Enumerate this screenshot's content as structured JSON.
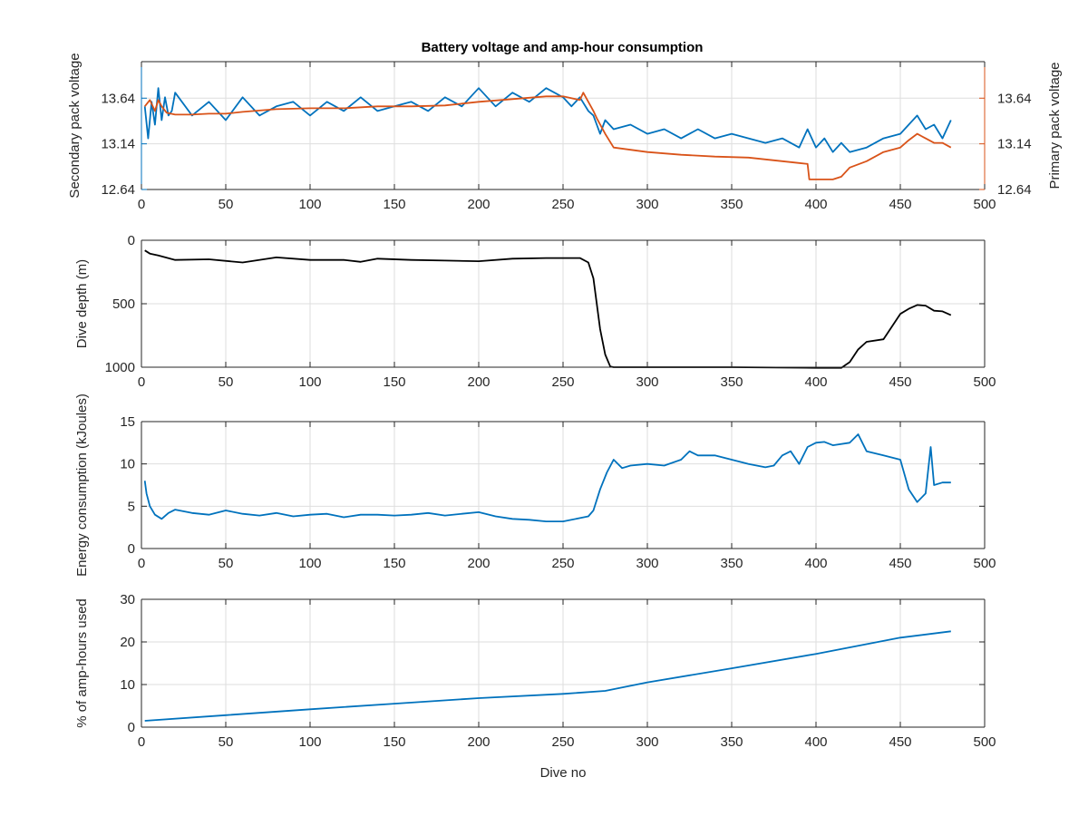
{
  "colors": {
    "secondary_voltage": "#0072BD",
    "primary_voltage": "#D95319",
    "depth": "#000000",
    "energy": "#0072BD",
    "amp_hours": "#0072BD",
    "grid": "#DEDEDE",
    "axes": "#262626"
  },
  "chart_data": [
    {
      "type": "line",
      "title": "Battery voltage and amp-hour consumption",
      "xlabel": "",
      "ylabel_left": "Secondary pack voltage",
      "ylabel_right": "Primary pack voltage",
      "xlim": [
        0,
        500
      ],
      "ylim_left": [
        12.64,
        14.04
      ],
      "ylim_right": [
        12.64,
        14.04
      ],
      "xticks": [
        0,
        50,
        100,
        150,
        200,
        250,
        300,
        350,
        400,
        450,
        500
      ],
      "yticks_left": [
        12.64,
        13.14,
        13.64
      ],
      "yticks_right": [
        12.64,
        13.14,
        13.64
      ],
      "grid": true,
      "series": [
        {
          "axis": "left",
          "x": [
            2,
            4,
            6,
            8,
            10,
            12,
            14,
            16,
            18,
            20,
            30,
            40,
            50,
            60,
            70,
            80,
            90,
            100,
            110,
            120,
            130,
            140,
            150,
            160,
            170,
            180,
            190,
            200,
            210,
            220,
            230,
            240,
            250,
            255,
            260,
            265,
            268,
            270,
            272,
            275,
            280,
            290,
            300,
            310,
            320,
            330,
            340,
            350,
            360,
            370,
            380,
            390,
            395,
            400,
            405,
            410,
            415,
            420,
            430,
            440,
            450,
            455,
            460,
            465,
            470,
            475,
            480
          ],
          "y": [
            13.55,
            13.2,
            13.6,
            13.35,
            13.75,
            13.4,
            13.65,
            13.45,
            13.5,
            13.7,
            13.45,
            13.6,
            13.4,
            13.65,
            13.45,
            13.55,
            13.6,
            13.45,
            13.6,
            13.5,
            13.65,
            13.5,
            13.55,
            13.6,
            13.5,
            13.65,
            13.55,
            13.75,
            13.55,
            13.7,
            13.6,
            13.75,
            13.65,
            13.55,
            13.65,
            13.5,
            13.45,
            13.35,
            13.25,
            13.4,
            13.3,
            13.35,
            13.25,
            13.3,
            13.2,
            13.3,
            13.2,
            13.25,
            13.2,
            13.15,
            13.2,
            13.1,
            13.3,
            13.1,
            13.2,
            13.05,
            13.15,
            13.05,
            13.1,
            13.2,
            13.25,
            13.35,
            13.45,
            13.3,
            13.35,
            13.2,
            13.4
          ]
        },
        {
          "axis": "right",
          "x": [
            2,
            5,
            8,
            10,
            12,
            15,
            20,
            30,
            40,
            50,
            60,
            80,
            100,
            120,
            140,
            160,
            180,
            200,
            220,
            240,
            250,
            260,
            262,
            265,
            268,
            270,
            275,
            280,
            300,
            320,
            340,
            360,
            380,
            390,
            395,
            396,
            400,
            410,
            415,
            420,
            430,
            440,
            450,
            455,
            460,
            465,
            470,
            475,
            480
          ],
          "y": [
            13.55,
            13.62,
            13.5,
            13.62,
            13.55,
            13.48,
            13.46,
            13.46,
            13.47,
            13.47,
            13.49,
            13.52,
            13.53,
            13.53,
            13.55,
            13.55,
            13.56,
            13.6,
            13.63,
            13.66,
            13.66,
            13.62,
            13.7,
            13.6,
            13.5,
            13.42,
            13.25,
            13.1,
            13.05,
            13.02,
            13.0,
            12.99,
            12.95,
            12.93,
            12.92,
            12.75,
            12.75,
            12.75,
            12.78,
            12.88,
            12.95,
            13.05,
            13.1,
            13.18,
            13.25,
            13.2,
            13.15,
            13.15,
            13.1
          ]
        }
      ]
    },
    {
      "type": "line",
      "xlabel": "",
      "ylabel": "Dive depth (m)",
      "xlim": [
        0,
        500
      ],
      "ylim": [
        0,
        1000
      ],
      "y_reversed": true,
      "xticks": [
        0,
        50,
        100,
        150,
        200,
        250,
        300,
        350,
        400,
        450,
        500
      ],
      "yticks": [
        0,
        500,
        1000
      ],
      "grid": true,
      "series": [
        {
          "x": [
            2,
            5,
            10,
            20,
            40,
            60,
            80,
            100,
            120,
            130,
            140,
            160,
            180,
            200,
            220,
            240,
            260,
            265,
            268,
            270,
            272,
            275,
            278,
            280,
            300,
            350,
            400,
            415,
            420,
            425,
            430,
            440,
            450,
            455,
            460,
            465,
            470,
            475,
            480
          ],
          "y": [
            80,
            105,
            120,
            155,
            150,
            175,
            135,
            155,
            155,
            170,
            145,
            155,
            160,
            165,
            145,
            140,
            140,
            175,
            300,
            500,
            700,
            900,
            995,
            1000,
            1000,
            1000,
            1005,
            1005,
            960,
            860,
            800,
            780,
            580,
            540,
            510,
            515,
            555,
            560,
            590
          ]
        }
      ]
    },
    {
      "type": "line",
      "xlabel": "",
      "ylabel": "Energy consumption (kJoules)",
      "xlim": [
        0,
        500
      ],
      "ylim": [
        0,
        15
      ],
      "xticks": [
        0,
        50,
        100,
        150,
        200,
        250,
        300,
        350,
        400,
        450,
        500
      ],
      "yticks": [
        0,
        5,
        10,
        15
      ],
      "grid": true,
      "series": [
        {
          "x": [
            2,
            3,
            5,
            8,
            12,
            16,
            20,
            30,
            40,
            50,
            60,
            70,
            80,
            90,
            100,
            110,
            120,
            130,
            140,
            150,
            160,
            170,
            180,
            190,
            200,
            210,
            220,
            230,
            240,
            250,
            260,
            265,
            268,
            272,
            276,
            280,
            285,
            290,
            300,
            310,
            320,
            325,
            330,
            340,
            350,
            360,
            370,
            375,
            380,
            385,
            390,
            395,
            400,
            405,
            410,
            420,
            425,
            430,
            440,
            450,
            455,
            460,
            465,
            468,
            470,
            475,
            480
          ],
          "y": [
            8,
            6.5,
            5,
            4,
            3.5,
            4.2,
            4.6,
            4.2,
            4.0,
            4.5,
            4.1,
            3.9,
            4.2,
            3.8,
            4.0,
            4.1,
            3.7,
            4.0,
            4.0,
            3.9,
            4.0,
            4.2,
            3.9,
            4.1,
            4.3,
            3.8,
            3.5,
            3.4,
            3.2,
            3.2,
            3.6,
            3.8,
            4.5,
            7,
            9,
            10.5,
            9.5,
            9.8,
            10,
            9.8,
            10.5,
            11.5,
            11,
            11,
            10.5,
            10,
            9.6,
            9.8,
            11,
            11.5,
            10,
            12,
            12.5,
            12.6,
            12.2,
            12.5,
            13.5,
            11.5,
            11,
            10.5,
            7,
            5.5,
            6.5,
            12,
            7.5,
            7.8,
            7.8
          ]
        }
      ]
    },
    {
      "type": "line",
      "xlabel": "Dive no",
      "ylabel": "% of amp-hours used",
      "xlim": [
        0,
        500
      ],
      "ylim": [
        0,
        30
      ],
      "xticks": [
        0,
        50,
        100,
        150,
        200,
        250,
        300,
        350,
        400,
        450,
        500
      ],
      "yticks": [
        0,
        10,
        20,
        30
      ],
      "grid": true,
      "series": [
        {
          "x": [
            2,
            50,
            100,
            150,
            200,
            250,
            275,
            300,
            350,
            400,
            450,
            480
          ],
          "y": [
            1.5,
            2.8,
            4.2,
            5.5,
            6.8,
            7.8,
            8.5,
            10.5,
            13.8,
            17.2,
            21,
            22.5
          ]
        }
      ]
    }
  ]
}
